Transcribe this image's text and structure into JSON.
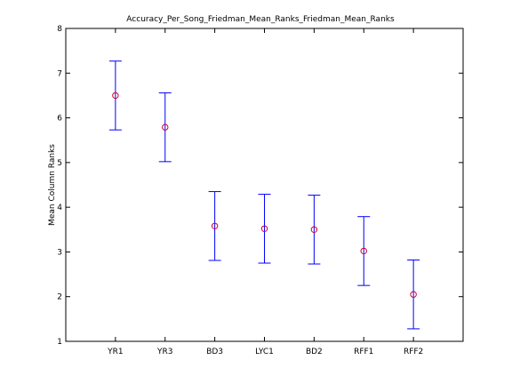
{
  "chart_data": {
    "type": "scatter",
    "title": "Accuracy_Per_Song_Friedman_Mean_Ranks_Friedman_Mean_Ranks",
    "xlabel": "",
    "ylabel": "Mean Column Ranks",
    "categories": [
      "YR1",
      "YR3",
      "BD3",
      "LYC1",
      "BD2",
      "RFF1",
      "RFF2"
    ],
    "series": [
      {
        "values": [
          6.5,
          5.79,
          3.58,
          3.52,
          3.5,
          3.02,
          2.05
        ],
        "lower": [
          5.73,
          5.02,
          2.81,
          2.75,
          2.73,
          2.25,
          1.28
        ],
        "upper": [
          7.27,
          6.56,
          4.35,
          4.29,
          4.27,
          3.79,
          2.82
        ]
      }
    ],
    "ylim": [
      1,
      8
    ],
    "yticks": [
      1,
      2,
      3,
      4,
      5,
      6,
      7,
      8
    ],
    "grid": false,
    "colors": {
      "errorbar": "#0000ff",
      "marker": "#cc0033",
      "axis": "#000000"
    }
  }
}
